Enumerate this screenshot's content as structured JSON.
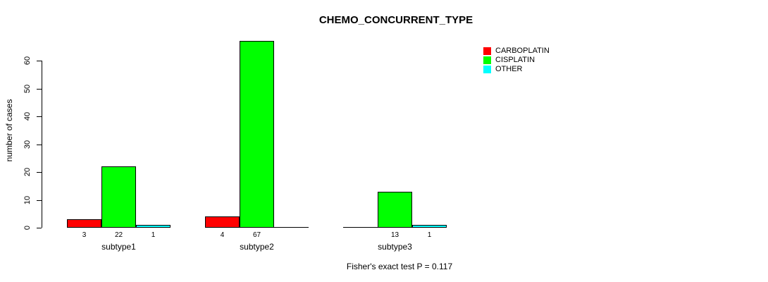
{
  "title": "CHEMO_CONCURRENT_TYPE",
  "footer": "Fisher's exact test P = 0.117",
  "chart_data": {
    "type": "bar",
    "title": "CHEMO_CONCURRENT_TYPE",
    "xlabel": "",
    "ylabel": "number of cases",
    "categories": [
      "subtype1",
      "subtype2",
      "subtype3"
    ],
    "series": [
      {
        "name": "CARBOPLATIN",
        "color": "#FF0000",
        "values": [
          3,
          4,
          0
        ]
      },
      {
        "name": "CISPLATIN",
        "color": "#00FF00",
        "values": [
          22,
          67,
          13
        ]
      },
      {
        "name": "OTHER",
        "color": "#00FFFF",
        "values": [
          1,
          0,
          1
        ]
      }
    ],
    "bar_value_labels": [
      [
        "3",
        "22",
        "1"
      ],
      [
        "4",
        "67",
        ""
      ],
      [
        "",
        "13",
        "1"
      ]
    ],
    "yticks": [
      0,
      10,
      20,
      30,
      40,
      50,
      60
    ],
    "ylim": [
      0,
      67
    ],
    "grid": false,
    "legend_position": "upper-right",
    "annotation": "Fisher's exact test P = 0.117",
    "background_color": "#FFFFFF",
    "axis_color": "#000000"
  }
}
